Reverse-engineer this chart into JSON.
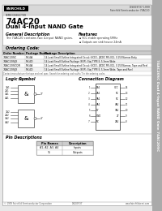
{
  "bg_color": "#ffffff",
  "page_bg": "#e8e8e8",
  "title_part": "74AC20",
  "title_desc": "Dual 4-Input NAND Gate",
  "section_general": "General Description",
  "section_features": "Features",
  "general_text": "The 74AC20 contains two 4-input NAND gates.",
  "features": [
    "VCC stable operating 5MHz",
    "Outputs are sink/source 24mA"
  ],
  "section_ordering": "Ordering Code:",
  "ordering_headers": [
    "Order Number",
    "Package Number",
    "Package Description"
  ],
  "ordering_rows": [
    [
      "74AC20SC",
      "M14A",
      "14-Lead Small Outline Integrated Circuit (SOIC), JEDEC MS-012, 0.150 Narrow Body"
    ],
    [
      "74AC20SJX",
      "M14D",
      "14-Lead Small Outline Package (SOP), Eiaj TYPE II, 5.3mm Wide"
    ],
    [
      "74AC20SCQR",
      "M14A",
      "14-Lead Small Outline Integrated Circuit (SOIC), JEDEC MS-012, 0.150 Narrow, Tape and Reel"
    ],
    [
      "74AC20SJX",
      "M14D",
      "14-Lead Small Outline Package (SOP), Eiaj TYPE II, 5.3mm Wide, Tape and Reel"
    ]
  ],
  "ordering_footnote": "Contact manufacturer for tape and reel spec. Search for ordering code suffix T in the ordering codes.",
  "section_logic": "Logic Symbol",
  "section_connection": "Connection Diagram",
  "section_pin": "Pin Descriptions",
  "pin_headers": [
    "Pin Names",
    "Description"
  ],
  "pin_rows": [
    [
      "A1, A2, A3, A4",
      "Inputs"
    ],
    [
      "Y1",
      "Outputs"
    ]
  ],
  "fairchild_text": "FAIRCHILD",
  "fairchild_sub": "SEMICONDUCTOR",
  "doc_number": "DS009737 1999",
  "rev_text": "Fairchild Semiconductor 74AC20",
  "sidebar_text": "74AC20SC Dual 4-Input NAND Gate 74AC20SC",
  "footer_left": "© 1999 Fairchild Semiconductor Corporation",
  "footer_mid": "DS009737",
  "footer_right": "www.fairchildsemi.com",
  "sidebar_color": "#aaaaaa",
  "header_strip_color": "#d8d8d8",
  "table_header_color": "#cccccc",
  "main_border_color": "#888888",
  "text_dark": "#111111",
  "text_mid": "#333333",
  "text_light": "#555555"
}
